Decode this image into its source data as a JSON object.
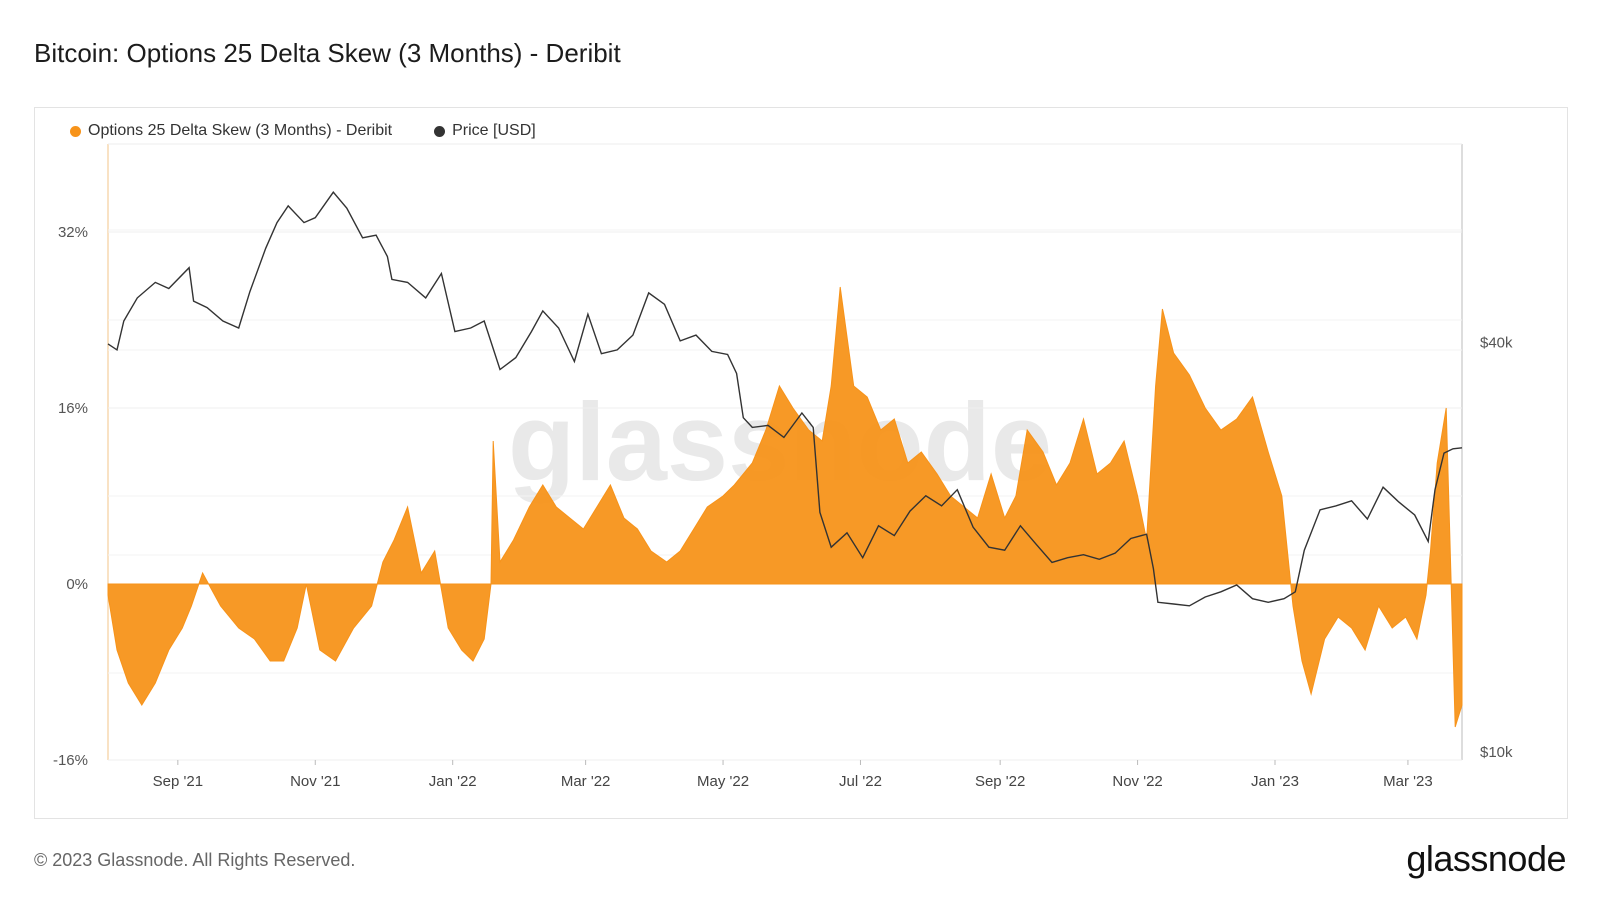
{
  "header": {
    "title": "Bitcoin: Options 25 Delta Skew (3 Months) - Deribit"
  },
  "footer": {
    "copyright": "© 2023 Glassnode. All Rights Reserved.",
    "logo": "glassnode"
  },
  "watermark": "glassnode",
  "legend": [
    {
      "label": "Options 25 Delta Skew (3 Months) - Deribit",
      "color": "#f7931a"
    },
    {
      "label": "Price [USD]",
      "color": "#333333"
    }
  ],
  "chart_data": {
    "type": "area",
    "x_ticks": [
      "Sep '21",
      "Nov '21",
      "Jan '22",
      "Mar '22",
      "May '22",
      "Jul '22",
      "Sep '22",
      "Nov '22",
      "Jan '23",
      "Mar '23"
    ],
    "y_left_ticks": [
      "32%",
      "16%",
      "0%",
      "-16%"
    ],
    "y_left_range": [
      -16,
      37
    ],
    "y_right_ticks": [
      "$40k",
      "$10k"
    ],
    "y_right_range": [
      10000,
      67000
    ],
    "y_right_scale": "log",
    "x_range": [
      "2021-08-01",
      "2023-03-25"
    ],
    "grid": true,
    "legend_position": "top-left",
    "series": [
      {
        "name": "Options 25 Delta Skew (3 Months) - Deribit",
        "axis": "left",
        "color": "#f7931a",
        "x": [
          "2021-08-01",
          "2021-08-05",
          "2021-08-10",
          "2021-08-16",
          "2021-08-22",
          "2021-08-28",
          "2021-09-03",
          "2021-09-07",
          "2021-09-12",
          "2021-09-20",
          "2021-09-28",
          "2021-10-05",
          "2021-10-12",
          "2021-10-18",
          "2021-10-24",
          "2021-10-28",
          "2021-11-03",
          "2021-11-10",
          "2021-11-18",
          "2021-11-26",
          "2021-12-01",
          "2021-12-06",
          "2021-12-12",
          "2021-12-18",
          "2021-12-24",
          "2021-12-30",
          "2022-01-05",
          "2022-01-10",
          "2022-01-15",
          "2022-01-18",
          "2022-01-19",
          "2022-01-22",
          "2022-01-28",
          "2022-02-04",
          "2022-02-10",
          "2022-02-16",
          "2022-02-22",
          "2022-02-28",
          "2022-03-06",
          "2022-03-12",
          "2022-03-18",
          "2022-03-24",
          "2022-03-30",
          "2022-04-06",
          "2022-04-12",
          "2022-04-18",
          "2022-04-24",
          "2022-05-01",
          "2022-05-06",
          "2022-05-10",
          "2022-05-14",
          "2022-05-20",
          "2022-05-26",
          "2022-06-01",
          "2022-06-08",
          "2022-06-14",
          "2022-06-18",
          "2022-06-22",
          "2022-06-28",
          "2022-07-04",
          "2022-07-10",
          "2022-07-16",
          "2022-07-22",
          "2022-07-28",
          "2022-08-04",
          "2022-08-10",
          "2022-08-16",
          "2022-08-22",
          "2022-08-28",
          "2022-09-03",
          "2022-09-08",
          "2022-09-13",
          "2022-09-20",
          "2022-09-26",
          "2022-10-02",
          "2022-10-08",
          "2022-10-14",
          "2022-10-20",
          "2022-10-26",
          "2022-11-01",
          "2022-11-05",
          "2022-11-09",
          "2022-11-12",
          "2022-11-17",
          "2022-11-24",
          "2022-12-01",
          "2022-12-08",
          "2022-12-15",
          "2022-12-22",
          "2022-12-29",
          "2023-01-04",
          "2023-01-09",
          "2023-01-13",
          "2023-01-17",
          "2023-01-23",
          "2023-01-29",
          "2023-02-04",
          "2023-02-10",
          "2023-02-16",
          "2023-02-22",
          "2023-02-28",
          "2023-03-05",
          "2023-03-09",
          "2023-03-11",
          "2023-03-14",
          "2023-03-18",
          "2023-03-22",
          "2023-03-25"
        ],
        "values": [
          -1,
          -6,
          -9,
          -11,
          -9,
          -6,
          -4,
          -2,
          1,
          -2,
          -4,
          -5,
          -7,
          -7,
          -4,
          0,
          -6,
          -7,
          -4,
          -2,
          2,
          4,
          7,
          1,
          3,
          -4,
          -6,
          -7,
          -5,
          0,
          13,
          2,
          4,
          7,
          9,
          7,
          6,
          5,
          7,
          9,
          6,
          5,
          3,
          2,
          3,
          5,
          7,
          8,
          9,
          10,
          11,
          14,
          18,
          16,
          14,
          13,
          18,
          27,
          18,
          17,
          14,
          15,
          11,
          12,
          10,
          8,
          7,
          6,
          10,
          6,
          8,
          14,
          12,
          9,
          11,
          15,
          10,
          11,
          13,
          8,
          4,
          18,
          25,
          21,
          19,
          16,
          14,
          15,
          17,
          12,
          8,
          -2,
          -7,
          -10,
          -5,
          -3,
          -4,
          -6,
          -2,
          -4,
          -3,
          -5,
          -1,
          3,
          11,
          16,
          -13,
          -11
        ]
      },
      {
        "name": "Price [USD]",
        "axis": "right",
        "color": "#333333",
        "x": [
          "2021-08-01",
          "2021-08-05",
          "2021-08-08",
          "2021-08-14",
          "2021-08-22",
          "2021-08-28",
          "2021-09-06",
          "2021-09-08",
          "2021-09-14",
          "2021-09-21",
          "2021-09-28",
          "2021-10-03",
          "2021-10-10",
          "2021-10-15",
          "2021-10-20",
          "2021-10-27",
          "2021-11-01",
          "2021-11-09",
          "2021-11-15",
          "2021-11-22",
          "2021-11-28",
          "2021-12-03",
          "2021-12-05",
          "2021-12-12",
          "2021-12-20",
          "2021-12-27",
          "2022-01-02",
          "2022-01-09",
          "2022-01-15",
          "2022-01-22",
          "2022-01-29",
          "2022-02-05",
          "2022-02-10",
          "2022-02-17",
          "2022-02-24",
          "2022-03-02",
          "2022-03-08",
          "2022-03-15",
          "2022-03-22",
          "2022-03-29",
          "2022-04-05",
          "2022-04-12",
          "2022-04-19",
          "2022-04-26",
          "2022-05-03",
          "2022-05-07",
          "2022-05-10",
          "2022-05-14",
          "2022-05-21",
          "2022-05-28",
          "2022-06-05",
          "2022-06-10",
          "2022-06-13",
          "2022-06-18",
          "2022-06-25",
          "2022-07-02",
          "2022-07-09",
          "2022-07-16",
          "2022-07-23",
          "2022-07-30",
          "2022-08-06",
          "2022-08-13",
          "2022-08-20",
          "2022-08-27",
          "2022-09-03",
          "2022-09-10",
          "2022-09-17",
          "2022-09-24",
          "2022-10-01",
          "2022-10-08",
          "2022-10-15",
          "2022-10-22",
          "2022-10-29",
          "2022-11-05",
          "2022-11-08",
          "2022-11-10",
          "2022-11-17",
          "2022-11-24",
          "2022-12-01",
          "2022-12-08",
          "2022-12-15",
          "2022-12-22",
          "2022-12-29",
          "2023-01-05",
          "2023-01-10",
          "2023-01-14",
          "2023-01-21",
          "2023-01-28",
          "2023-02-04",
          "2023-02-11",
          "2023-02-18",
          "2023-02-25",
          "2023-03-04",
          "2023-03-10",
          "2023-03-13",
          "2023-03-17",
          "2023-03-21",
          "2023-03-25"
        ],
        "values": [
          39800,
          39000,
          43000,
          46500,
          49000,
          48000,
          51500,
          46000,
          45000,
          43000,
          42000,
          47500,
          55000,
          60000,
          63500,
          60000,
          61000,
          66500,
          63000,
          57000,
          57500,
          53500,
          49500,
          49000,
          46500,
          50500,
          41500,
          42000,
          43000,
          36500,
          38000,
          41500,
          44500,
          42000,
          37500,
          44000,
          38500,
          39000,
          41000,
          47300,
          45500,
          40200,
          41000,
          38800,
          38400,
          36000,
          31000,
          30000,
          30200,
          29000,
          31500,
          30000,
          22500,
          20000,
          21000,
          19300,
          21500,
          20800,
          22600,
          23800,
          23000,
          24300,
          21400,
          20000,
          19800,
          21500,
          20200,
          19000,
          19300,
          19500,
          19200,
          19600,
          20600,
          20900,
          18600,
          16600,
          16500,
          16400,
          16900,
          17200,
          17600,
          16800,
          16600,
          16800,
          17200,
          19800,
          22700,
          23000,
          23400,
          22000,
          24500,
          23300,
          22300,
          20400,
          24300,
          27500,
          27900,
          28000
        ]
      }
    ]
  }
}
